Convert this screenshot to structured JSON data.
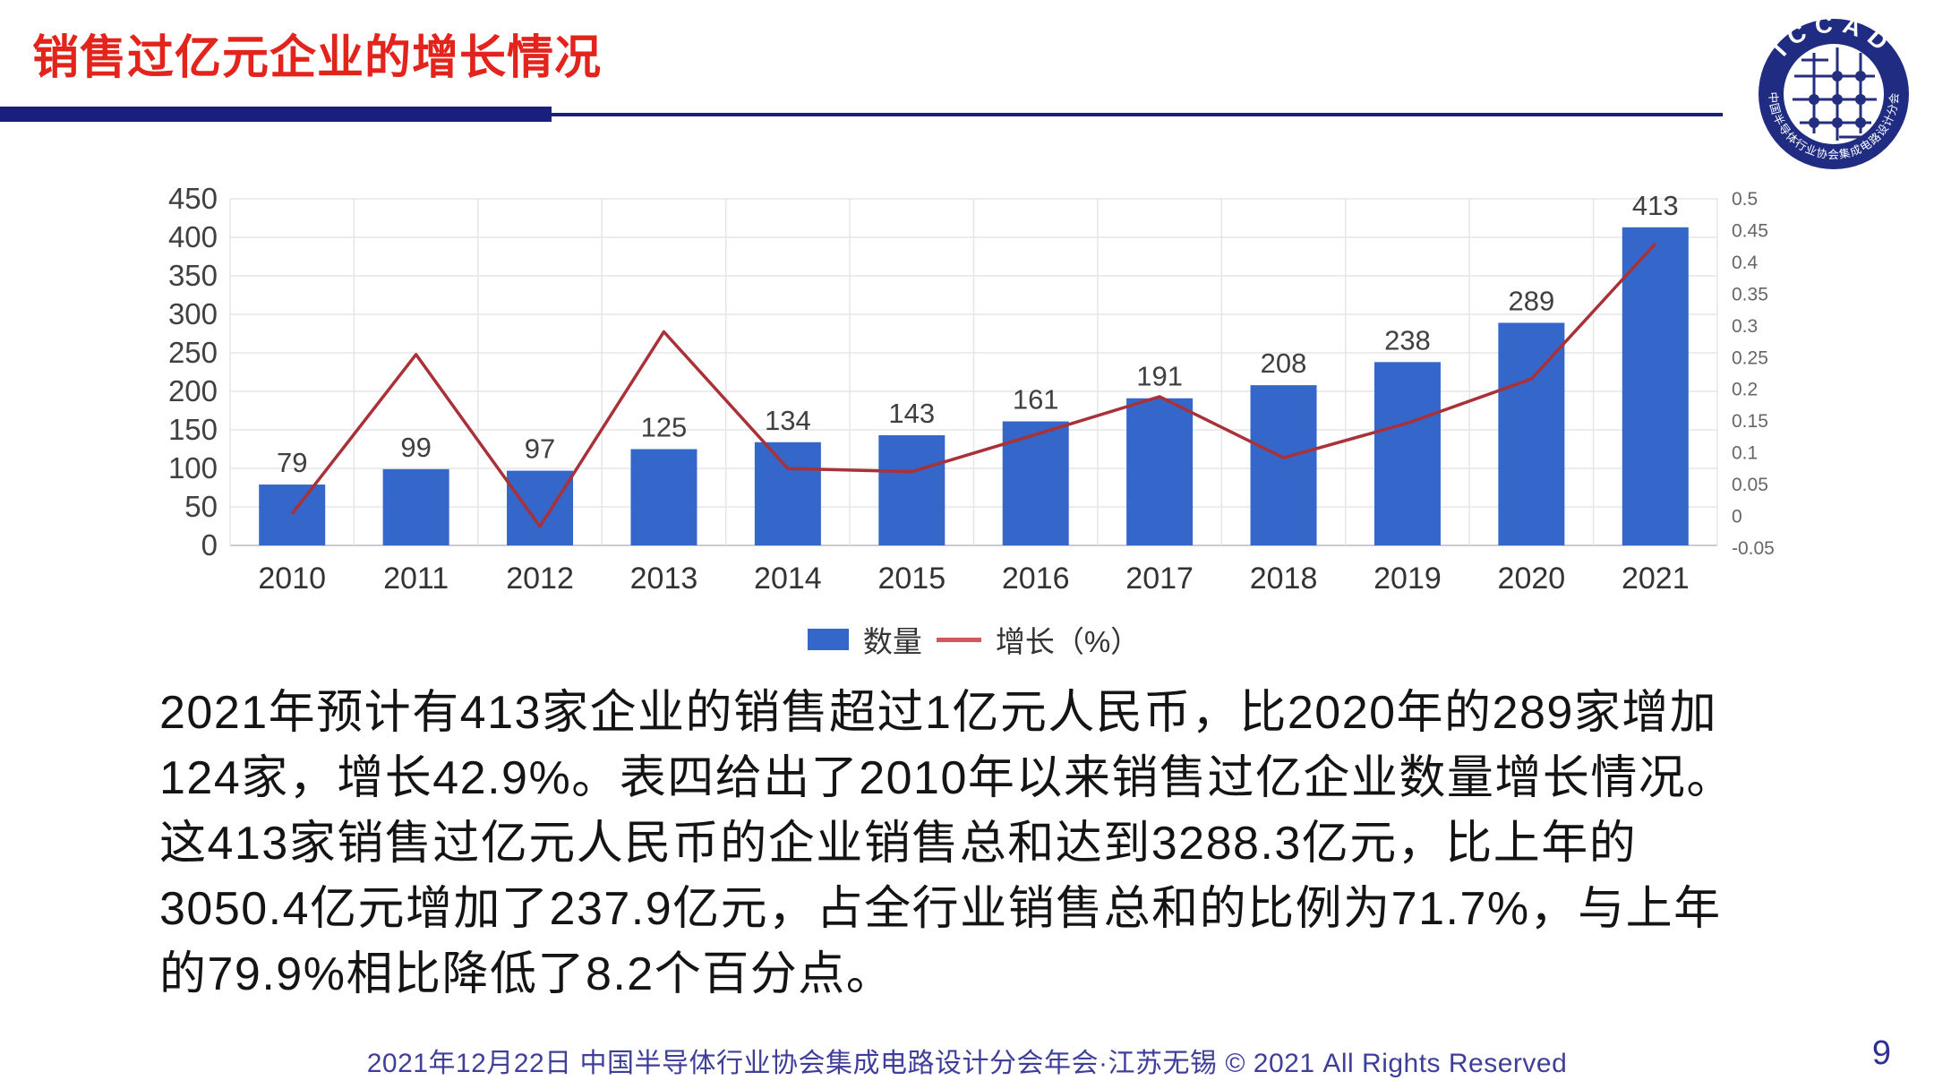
{
  "header": {
    "title": "销售过亿元企业的增长情况"
  },
  "logo": {
    "arc_top": "ICCAD",
    "arc_bottom": "中国半导体行业协会集成电路设计分会"
  },
  "chart_data": {
    "type": "bar",
    "title": "",
    "xlabel": "",
    "ylabel": "",
    "categories": [
      "2010",
      "2011",
      "2012",
      "2013",
      "2014",
      "2015",
      "2016",
      "2017",
      "2018",
      "2019",
      "2020",
      "2021"
    ],
    "series": [
      {
        "name": "数量",
        "type": "bar",
        "axis": "left",
        "values": [
          79,
          99,
          97,
          125,
          134,
          143,
          161,
          191,
          208,
          238,
          289,
          413
        ]
      },
      {
        "name": "增长（%）",
        "type": "line",
        "axis": "right",
        "values": [
          0.0,
          0.253,
          -0.02,
          0.289,
          0.072,
          0.067,
          0.126,
          0.186,
          0.089,
          0.144,
          0.214,
          0.429
        ]
      }
    ],
    "left_axis": {
      "min": 0,
      "max": 450,
      "step": 50,
      "tick_labels": [
        "450",
        "400",
        "350",
        "300",
        "250",
        "200",
        "150",
        "100",
        "50",
        "0"
      ]
    },
    "right_axis": {
      "min": -0.05,
      "max": 0.5,
      "step": 0.05,
      "tick_labels": [
        "0.5",
        "0.45",
        "0.4",
        "0.35",
        "0.3",
        "0.25",
        "0.2",
        "0.15",
        "0.1",
        "0.05",
        "0",
        "-0.05"
      ]
    },
    "grid": true,
    "legend_position": "bottom"
  },
  "body": {
    "lines": [
      "2021年预计有413家企业的销售超过1亿元人民币，比2020年的289家增加",
      "124家，增长42.9%。表四给出了2010年以来销售过亿企业数量增长情况。",
      "这413家销售过亿元人民币的企业销售总和达到3288.3亿元，比上年的",
      "3050.4亿元增加了237.9亿元，占全行业销售总和的比例为71.7%，与上年",
      "的79.9%相比降低了8.2个百分点。"
    ]
  },
  "footer": {
    "text": "2021年12月22日 中国半导体行业协会集成电路设计分会年会·江苏无锡 © 2021 All Rights Reserved",
    "page_number": "9"
  },
  "colors": {
    "title_red": "#E3241D",
    "navy": "#1A1F7E",
    "bar_blue": "#3566C9",
    "line_red": "#A93138",
    "legend_line_red": "#CE5A60",
    "grid_gray": "#E4E6E8",
    "baseline_gray": "#C9CBCE",
    "axis_text": "#404040",
    "right_axis_text": "#666666",
    "body_text": "#141414",
    "footer_blue": "#3F3F9A"
  }
}
